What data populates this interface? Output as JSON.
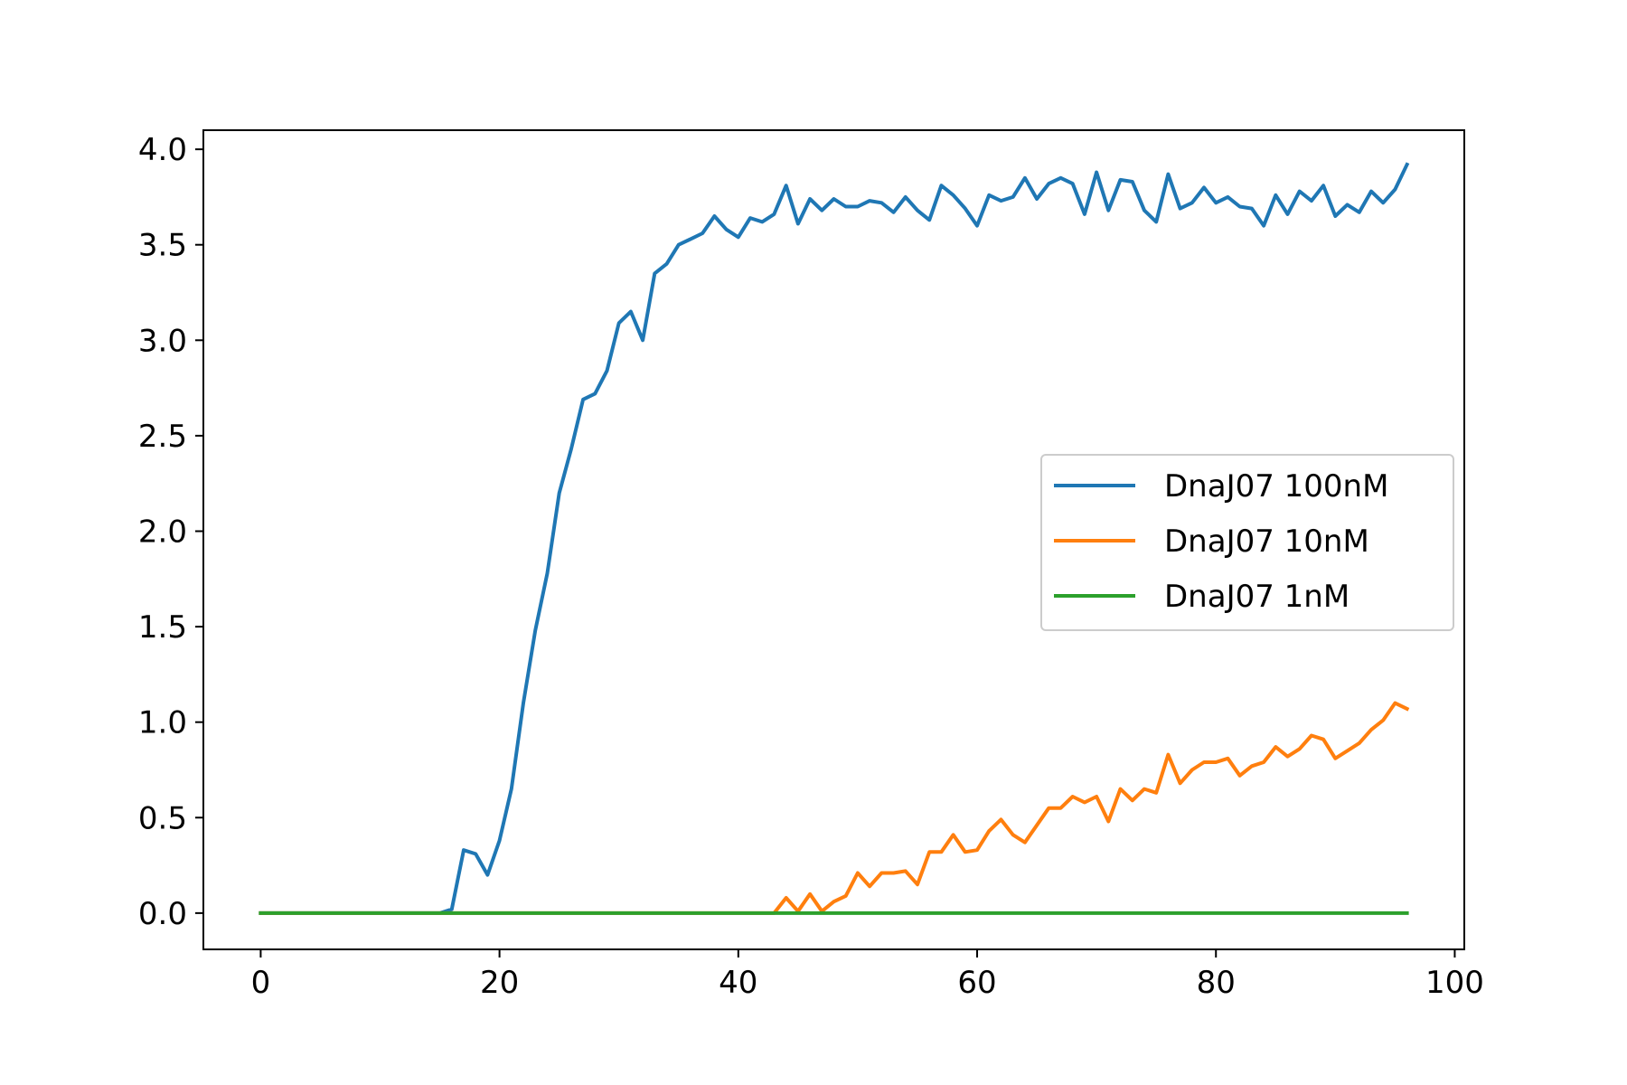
{
  "chart_data": {
    "type": "line",
    "title": "",
    "xlabel": "",
    "ylabel": "",
    "xlim": [
      -4.8,
      100.8
    ],
    "ylim": [
      -0.19,
      4.1
    ],
    "xticks": [
      0,
      20,
      40,
      60,
      80,
      100
    ],
    "xtick_labels": [
      "0",
      "20",
      "40",
      "60",
      "80",
      "100"
    ],
    "yticks": [
      0.0,
      0.5,
      1.0,
      1.5,
      2.0,
      2.5,
      3.0,
      3.5,
      4.0
    ],
    "ytick_labels": [
      "0.0",
      "0.5",
      "1.0",
      "1.5",
      "2.0",
      "2.5",
      "3.0",
      "3.5",
      "4.0"
    ],
    "grid": false,
    "legend_position": "center-right",
    "x": [
      0,
      1,
      2,
      3,
      4,
      5,
      6,
      7,
      8,
      9,
      10,
      11,
      12,
      13,
      14,
      15,
      16,
      17,
      18,
      19,
      20,
      21,
      22,
      23,
      24,
      25,
      26,
      27,
      28,
      29,
      30,
      31,
      32,
      33,
      34,
      35,
      36,
      37,
      38,
      39,
      40,
      41,
      42,
      43,
      44,
      45,
      46,
      47,
      48,
      49,
      50,
      51,
      52,
      53,
      54,
      55,
      56,
      57,
      58,
      59,
      60,
      61,
      62,
      63,
      64,
      65,
      66,
      67,
      68,
      69,
      70,
      71,
      72,
      73,
      74,
      75,
      76,
      77,
      78,
      79,
      80,
      81,
      82,
      83,
      84,
      85,
      86,
      87,
      88,
      89,
      90,
      91,
      92,
      93,
      94,
      95,
      96
    ],
    "series": [
      {
        "name": "DnaJ07 100nM",
        "color": "#1f77b4",
        "values": [
          0,
          0,
          0,
          0,
          0,
          0,
          0,
          0,
          0,
          0,
          0,
          0,
          0,
          0,
          0,
          0,
          0.02,
          0.33,
          0.31,
          0.2,
          0.38,
          0.65,
          1.1,
          1.48,
          1.78,
          2.2,
          2.43,
          2.69,
          2.72,
          2.84,
          3.09,
          3.15,
          3.0,
          3.35,
          3.4,
          3.5,
          3.53,
          3.56,
          3.65,
          3.58,
          3.54,
          3.64,
          3.62,
          3.66,
          3.81,
          3.61,
          3.74,
          3.68,
          3.74,
          3.7,
          3.7,
          3.73,
          3.72,
          3.67,
          3.75,
          3.68,
          3.63,
          3.81,
          3.76,
          3.69,
          3.6,
          3.76,
          3.73,
          3.75,
          3.85,
          3.74,
          3.82,
          3.85,
          3.82,
          3.66,
          3.88,
          3.68,
          3.84,
          3.83,
          3.68,
          3.62,
          3.87,
          3.69,
          3.72,
          3.8,
          3.72,
          3.75,
          3.7,
          3.69,
          3.6,
          3.76,
          3.66,
          3.78,
          3.73,
          3.81,
          3.65,
          3.71,
          3.67,
          3.78,
          3.72,
          3.79,
          3.92
        ]
      },
      {
        "name": "DnaJ07 10nM",
        "color": "#ff7f0e",
        "values": [
          0,
          0,
          0,
          0,
          0,
          0,
          0,
          0,
          0,
          0,
          0,
          0,
          0,
          0,
          0,
          0,
          0,
          0,
          0,
          0,
          0,
          0,
          0,
          0,
          0,
          0,
          0,
          0,
          0,
          0,
          0,
          0,
          0,
          0,
          0,
          0,
          0,
          0,
          0,
          0,
          0,
          0,
          0,
          0,
          0.08,
          0.01,
          0.1,
          0.01,
          0.06,
          0.09,
          0.21,
          0.14,
          0.21,
          0.21,
          0.22,
          0.15,
          0.32,
          0.32,
          0.41,
          0.32,
          0.33,
          0.43,
          0.49,
          0.41,
          0.37,
          0.46,
          0.55,
          0.55,
          0.61,
          0.58,
          0.61,
          0.48,
          0.65,
          0.59,
          0.65,
          0.63,
          0.83,
          0.68,
          0.75,
          0.79,
          0.79,
          0.81,
          0.72,
          0.77,
          0.79,
          0.87,
          0.82,
          0.86,
          0.93,
          0.91,
          0.81,
          0.85,
          0.89,
          0.96,
          1.01,
          1.1,
          1.07
        ]
      },
      {
        "name": "DnaJ07 1nM",
        "color": "#2ca02c",
        "values": [
          0,
          0,
          0,
          0,
          0,
          0,
          0,
          0,
          0,
          0,
          0,
          0,
          0,
          0,
          0,
          0,
          0,
          0,
          0,
          0,
          0,
          0,
          0,
          0,
          0,
          0,
          0,
          0,
          0,
          0,
          0,
          0,
          0,
          0,
          0,
          0,
          0,
          0,
          0,
          0,
          0,
          0,
          0,
          0,
          0,
          0,
          0,
          0,
          0,
          0,
          0,
          0,
          0,
          0,
          0,
          0,
          0,
          0,
          0,
          0,
          0,
          0,
          0,
          0,
          0,
          0,
          0,
          0,
          0,
          0,
          0,
          0,
          0,
          0,
          0,
          0,
          0,
          0,
          0,
          0,
          0,
          0,
          0,
          0,
          0,
          0,
          0,
          0,
          0,
          0,
          0,
          0,
          0,
          0,
          0,
          0,
          0
        ]
      }
    ]
  }
}
